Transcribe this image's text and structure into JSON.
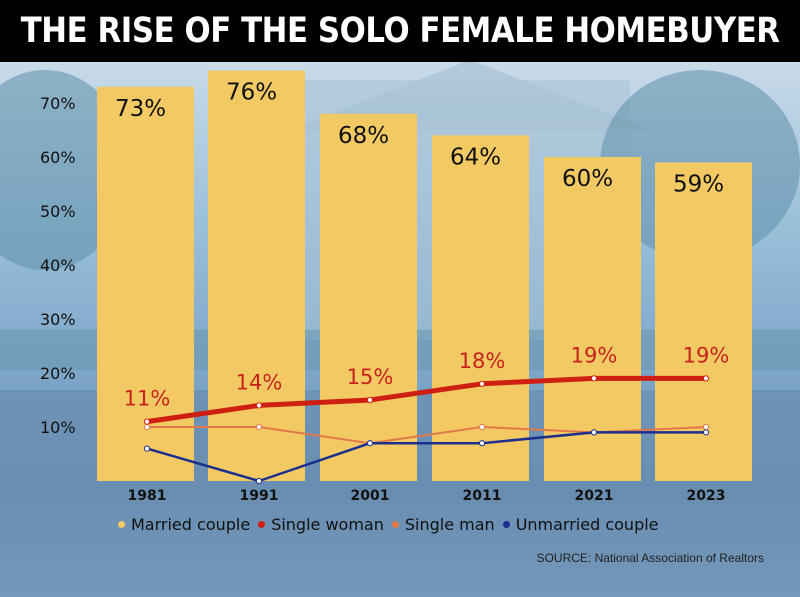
{
  "title": "THE RISE OF THE SOLO FEMALE HOMEBUYER",
  "source": "SOURCE: National Association of Realtors",
  "colors": {
    "married_bar": "#f3c963",
    "single_woman": "#cf1f12",
    "single_man": "#e07a4a",
    "unmarried": "#1c2f8f"
  },
  "chart_data": {
    "type": "bar",
    "categories": [
      "1981",
      "1991",
      "2001",
      "2011",
      "2021",
      "2023"
    ],
    "ylim": [
      0,
      80
    ],
    "yticks": [
      "10%",
      "20%",
      "30%",
      "40%",
      "50%",
      "60%",
      "70%"
    ],
    "ytick_values": [
      10,
      20,
      30,
      40,
      50,
      60,
      70
    ],
    "series": [
      {
        "name": "Married couple",
        "type": "bar",
        "values": [
          73,
          76,
          68,
          64,
          60,
          59
        ],
        "labels": [
          "73%",
          "76%",
          "68%",
          "64%",
          "60%",
          "59%"
        ]
      },
      {
        "name": "Single woman",
        "type": "line",
        "values": [
          11,
          14,
          15,
          18,
          19,
          19
        ],
        "labels": [
          "11%",
          "14%",
          "15%",
          "18%",
          "19%",
          "19%"
        ]
      },
      {
        "name": "Single man",
        "type": "line",
        "values": [
          10,
          10,
          7,
          10,
          9,
          10
        ]
      },
      {
        "name": "Unmarried couple",
        "type": "line",
        "values": [
          6,
          0,
          7,
          7,
          9,
          9
        ]
      }
    ],
    "legend": [
      "Married couple",
      "Single woman",
      "Single man",
      "Unmarried couple"
    ],
    "legend_position": "bottom",
    "grid": false
  }
}
